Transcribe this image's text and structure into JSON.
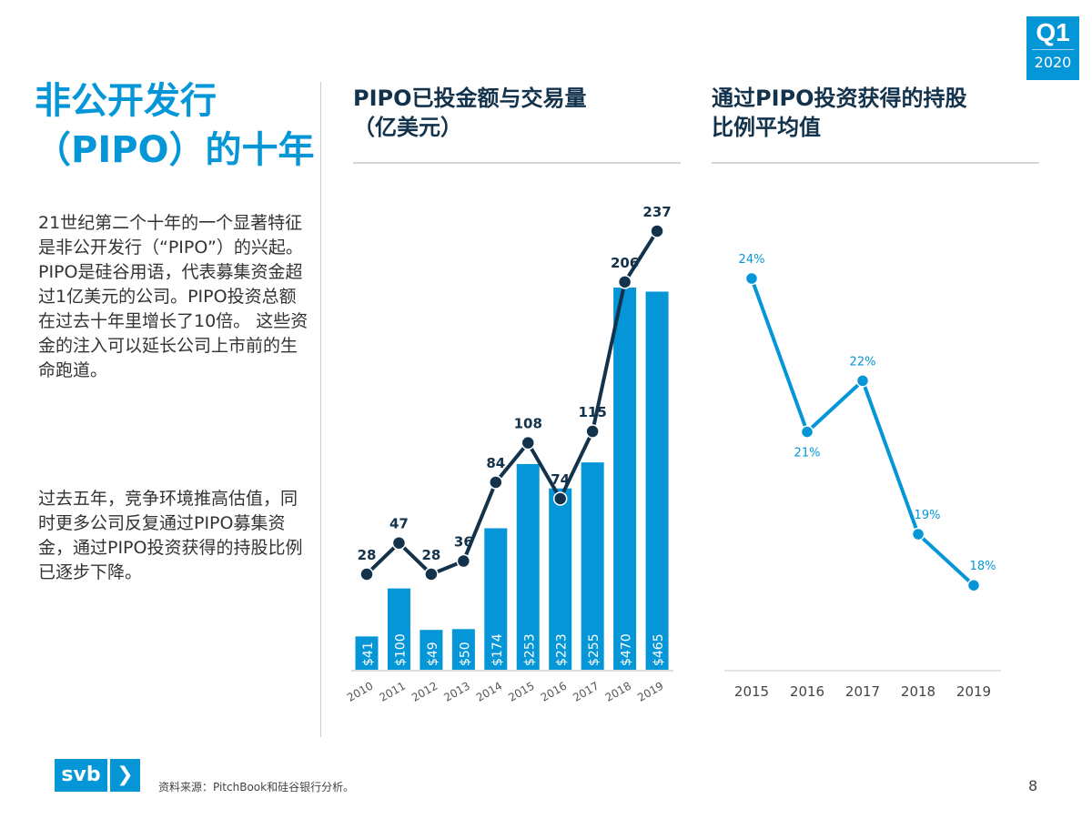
{
  "badge": {
    "quarter": "Q1",
    "year": "2020"
  },
  "title": {
    "line1": "非公开发行",
    "line2": "（PIPO）的十年"
  },
  "body": {
    "paragraph1": "21世纪第二个十年的一个显著特征是非公开发行（“PIPO”）的兴起。PIPO是硅谷用语，代表募集资金超过1亿美元的公司。PIPO投资总额在过去十年里增长了10倍。 这些资金的注入可以延长公司上市前的生命跑道。",
    "paragraph2": "过去五年，竞争环境推高估值，同时更多公司反复通过PIPO募集资金，通过PIPO投资获得的持股比例已逐步下降。"
  },
  "footer": {
    "logo": "svb",
    "logo_mark": "❯",
    "source": "资料来源：PitchBook和硅谷银行分析。",
    "page": "8"
  },
  "colors": {
    "brand": "#0596d8",
    "dark": "#13324b"
  },
  "chart_data": [
    {
      "type": "bar+line",
      "title": "PIPO已投金额与交易量（亿美元）",
      "title_line1": "PIPO已投金额与交易量",
      "title_line2": "（亿美元）",
      "categories": [
        "2010",
        "2011",
        "2012",
        "2013",
        "2014",
        "2015",
        "2016",
        "2017",
        "2018",
        "2019"
      ],
      "bar_values": [
        41,
        100,
        49,
        50,
        174,
        253,
        223,
        255,
        470,
        465
      ],
      "bar_labels": [
        "$41",
        "$100",
        "$49",
        "$50",
        "$174",
        "$253",
        "$223",
        "$255",
        "$470",
        "$465"
      ],
      "line_values": [
        28,
        47,
        28,
        36,
        84,
        108,
        74,
        115,
        206,
        237
      ],
      "grid": false
    },
    {
      "type": "line",
      "title": "通过PIPO投资获得的持股比例平均值",
      "title_line1": "通过PIPO投资获得的持股",
      "title_line2": "比例平均值",
      "categories": [
        "2015",
        "2016",
        "2017",
        "2018",
        "2019"
      ],
      "values": [
        24,
        21,
        22,
        19,
        18
      ],
      "labels": [
        "24%",
        "21%",
        "22%",
        "19%",
        "18%"
      ],
      "grid": false
    }
  ]
}
